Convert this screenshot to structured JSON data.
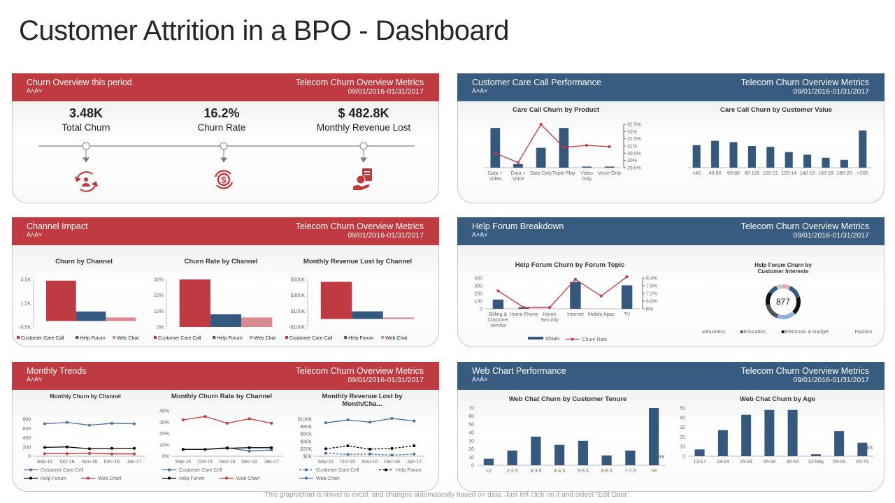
{
  "title": "Customer Attrition in a BPO - Dashboard",
  "footer": "This graph/chart is linked to excel, and changes automatically based on data. Just left click on it and select “Edit Data”.",
  "colors": {
    "red": "#bf3b41",
    "blue": "#385b80",
    "bar_blue": "#34587e",
    "pink": "#d98a8e"
  },
  "panels": [
    {
      "title": "Churn Overview  this period",
      "font_size_control": "A˄A˅",
      "metrics_title": "Telecom Churn Overview  Metrics",
      "date_range": "09/01/2016-01/31/2017"
    },
    {
      "title": "Customer Care  Call Performance",
      "font_size_control": "A˄A˅",
      "metrics_title": "Telecom Churn Overview  Metrics",
      "date_range": "09/01/2016-01/31/2017"
    },
    {
      "title": "Channel Impact",
      "font_size_control": "A˄A˅",
      "metrics_title": "Telecom Churn Overview  Metrics",
      "date_range": "09/01/2016-01/31/2017"
    },
    {
      "title": "Help Forum Breakdown",
      "font_size_control": "A˄A˅",
      "metrics_title": "Telecom Churn Overview  Metrics",
      "date_range": "09/01/2016-01/31/2017"
    },
    {
      "title": "Monthly Trends",
      "font_size_control": "A˄A˅",
      "metrics_title": "Telecom Churn Overview  Metrics",
      "date_range": "09/01/2016-01/31/2017"
    },
    {
      "title": "Web Chart Performance",
      "font_size_control": "A˄A˅",
      "metrics_title": "Telecom Churn Overview  Metrics",
      "date_range": "09/01/2016-01/31/2017"
    }
  ],
  "kpis": [
    {
      "value": "3.48K",
      "label": "Total Churn",
      "icon": "customer-churn-cycle-icon"
    },
    {
      "value": "16.2%",
      "label": "Churn Rate",
      "icon": "dollar-cycle-icon"
    },
    {
      "value": "$ 482.8K",
      "label": "Monthly Revenue Lost",
      "icon": "hand-money-document-icon"
    }
  ],
  "chart_data": [
    {
      "type": "bar+line",
      "title": "Care Call Churn by Product",
      "categories": [
        "Data +\nVideo",
        "Data +\nVoice",
        "Data Only",
        "Triple Play",
        "Video\nOnly",
        "Voice Only"
      ],
      "y_axis": {
        "min": 0,
        "max": 1200
      },
      "y2_axis": {
        "min": 29.5,
        "max": 32.5,
        "ticks": [
          29.5,
          30,
          30.5,
          31,
          31.5,
          32,
          32.5
        ],
        "labels": [
          "29.5%",
          "30%",
          "30.5%",
          "31%",
          "31.5%",
          "32%",
          "32.5%"
        ]
      },
      "series": [
        {
          "kind": "bar",
          "values": [
            1100,
            100,
            550,
            1100,
            30,
            30
          ],
          "color": "#34587e"
        },
        {
          "kind": "line",
          "axis": "right",
          "values": [
            30.5,
            29.85,
            32.5,
            30.9,
            31.05,
            30.95
          ],
          "color": "#c0393f"
        }
      ]
    },
    {
      "type": "bar",
      "title": "Care Call Churn by Customer Value",
      "categories": [
        "<40",
        "40-60",
        "60-80",
        "80-100",
        "100-12",
        "120-14",
        "140-16",
        "160-18",
        "180-20",
        ">200"
      ],
      "y_axis": {
        "min": 0,
        "max": 1000
      },
      "series": [
        {
          "kind": "bar",
          "values": [
            520,
            620,
            590,
            500,
            480,
            360,
            300,
            230,
            180,
            860
          ],
          "color": "#34587e"
        }
      ]
    },
    {
      "type": "bar",
      "title": "Churn by Channel",
      "categories": [
        ""
      ],
      "legend": "bottom",
      "y_axis": {
        "min": -0.5,
        "max": 3.5,
        "ticks": [
          -0.5,
          1.5,
          3.5
        ],
        "labels": [
          "-0.5K",
          "1.5K",
          "3.5K"
        ]
      },
      "series": [
        {
          "name": "Customer Care Call",
          "kind": "bar",
          "values": [
            3.4
          ],
          "color": "#bf3b41"
        },
        {
          "name": "Help Forum",
          "kind": "bar",
          "values": [
            0.8
          ],
          "color": "#34587e"
        },
        {
          "name": "Web Chat",
          "kind": "bar",
          "values": [
            0.3
          ],
          "color": "#d98a8e"
        }
      ]
    },
    {
      "type": "bar",
      "title": "Churn Rate by Channel",
      "categories": [
        ""
      ],
      "legend": "bottom",
      "y_axis": {
        "min": 0,
        "max": 30,
        "ticks": [
          0,
          10,
          20,
          30
        ],
        "labels": [
          "0%",
          "10%",
          "20%",
          "30%"
        ]
      },
      "series": [
        {
          "name": "Customer Care Call",
          "kind": "bar",
          "values": [
            30
          ],
          "color": "#bf3b41"
        },
        {
          "name": "Help Forum",
          "kind": "bar",
          "values": [
            8
          ],
          "color": "#34587e"
        },
        {
          "name": "Web Chat",
          "kind": "bar",
          "values": [
            6
          ],
          "color": "#d98a8e"
        }
      ]
    },
    {
      "type": "bar",
      "title": "Monthly Revenue Lost by Channel",
      "categories": [
        ""
      ],
      "legend": "bottom",
      "y_axis": {
        "min": -100,
        "max": 500,
        "ticks": [
          -100,
          100,
          300,
          500
        ],
        "labels": [
          "-$100K",
          "$100K",
          "$300K",
          "$500K"
        ]
      },
      "series": [
        {
          "name": "Customer Care Call",
          "kind": "bar",
          "values": [
            470
          ],
          "color": "#bf3b41"
        },
        {
          "name": "Help Forum",
          "kind": "bar",
          "values": [
            97
          ],
          "color": "#34587e"
        },
        {
          "name": "Web Chat",
          "kind": "bar",
          "values": [
            20
          ],
          "color": "#d98a8e"
        }
      ]
    },
    {
      "type": "bar+line",
      "title": "Help Forum Churn by Forum Topic",
      "categories": [
        "Billing &\nCustomer\nservice",
        "Home Phone",
        "Home\nSecurity",
        "Internet",
        "Mobile Apps",
        "TV"
      ],
      "legend": "bottom",
      "y_axis": {
        "min": 0,
        "max": 400,
        "ticks": [
          0,
          100,
          200,
          300,
          400
        ],
        "labels": [
          "0",
          "100",
          "200",
          "300",
          "400"
        ]
      },
      "y2_axis": {
        "min": 6,
        "max": 8.4,
        "ticks": [
          6,
          6.6,
          7.2,
          7.8,
          8.4
        ],
        "labels": [
          "6%",
          "6.6%",
          "7.2%",
          "7.8%",
          "8.4%"
        ]
      },
      "series": [
        {
          "name": "Churn",
          "kind": "bar",
          "values": [
            120,
            20,
            0,
            350,
            0,
            305
          ],
          "color": "#34587e"
        },
        {
          "name": "Churn Rate",
          "kind": "line",
          "axis": "right",
          "values": [
            7.4,
            6.1,
            6.1,
            8.3,
            7.0,
            8.5
          ],
          "color": "#c0393f"
        }
      ]
    },
    {
      "type": "donut",
      "title": "Help Forum Churn by\nCustomer Interests",
      "total": "877",
      "legend": "bottom",
      "segments": [
        {
          "name": "Business",
          "value": 60,
          "color": "#e6a9ad"
        },
        {
          "name": "Education",
          "value": 120,
          "color": "#34587e"
        },
        {
          "name": "Electronic & Gadget",
          "value": 150,
          "color": "#111111"
        },
        {
          "name": "Fashion",
          "value": 0,
          "color": "#ffffff"
        },
        {
          "name": "",
          "value": 160,
          "color": "#8fb0d8"
        },
        {
          "name": "",
          "value": 140,
          "color": "#555555"
        },
        {
          "name": "",
          "value": 110,
          "color": "#111111"
        },
        {
          "name": "",
          "value": 80,
          "color": "#34587e"
        },
        {
          "name": "",
          "value": 57,
          "color": "#c9c9c9"
        }
      ]
    },
    {
      "type": "line",
      "title": "Monthly Churn by Channel",
      "categories": [
        "Sep-16",
        "Oct-16",
        "Nov-16",
        "Dec-16",
        "Jan-17"
      ],
      "legend": "bottom",
      "y_axis": {
        "min": 0,
        "max": 800,
        "ticks": [
          0,
          200,
          400,
          600,
          800
        ],
        "labels": [
          "0",
          "200",
          "400",
          "600",
          "800"
        ]
      },
      "series": [
        {
          "name": "Customer Care Cell",
          "kind": "line",
          "values": [
            700,
            730,
            670,
            710,
            700
          ],
          "color": "#4a6f99"
        },
        {
          "name": "Help Forum",
          "kind": "line",
          "values": [
            190,
            200,
            160,
            170,
            170
          ],
          "color": "#000000"
        },
        {
          "name": "Web Chart",
          "kind": "line",
          "values": [
            55,
            55,
            60,
            50,
            50
          ],
          "color": "#c0393f"
        }
      ]
    },
    {
      "type": "line",
      "title": "Monthly Churn Rate by Channel",
      "categories": [
        "Sep-16",
        "Oct-16",
        "Nov-16",
        "Dec-16",
        "Jan-17"
      ],
      "legend": "bottom",
      "y_axis": {
        "min": 0,
        "max": 40,
        "ticks": [
          0,
          10,
          20,
          30,
          40
        ],
        "labels": [
          "0%",
          "10%",
          "20%",
          "30%",
          "40%"
        ]
      },
      "series": [
        {
          "name": "Customer Care Cell",
          "kind": "line",
          "values": [
            6,
            6,
            7.5,
            4.5,
            5.5
          ],
          "color": "#4a6f99"
        },
        {
          "name": "Help Forum",
          "kind": "line",
          "values": [
            6,
            6,
            7,
            7.5,
            7.5
          ],
          "color": "#000000"
        },
        {
          "name": "Web Chart",
          "kind": "line",
          "values": [
            32,
            35,
            29,
            33,
            29
          ],
          "color": "#c0393f"
        }
      ]
    },
    {
      "type": "line",
      "title": "Monthly Revenue Lost by\nMonth/Cha...",
      "categories": [
        "Sep-16",
        "Oct-16",
        "Nov-16",
        "Dec-16",
        "Jan-17"
      ],
      "legend": "bottom",
      "y_axis": {
        "min": 0,
        "max": 100,
        "ticks": [
          0,
          20,
          40,
          60,
          80,
          100
        ],
        "labels": [
          "$0K",
          "$20K",
          "$40K",
          "$60K",
          "$80K",
          "$100K"
        ]
      },
      "series": [
        {
          "name": "Customer Care Cell",
          "kind": "line",
          "dashed": true,
          "values": [
            8,
            5,
            6,
            3,
            6
          ],
          "color": "#4a6f99"
        },
        {
          "name": "Help Forum",
          "kind": "line",
          "dashed": true,
          "values": [
            20,
            28,
            19,
            21,
            28
          ],
          "color": "#000000"
        },
        {
          "name": "Web Chart",
          "kind": "line",
          "values": [
            90,
            98,
            92,
            102,
            95
          ],
          "color": "#4a6f99"
        }
      ]
    },
    {
      "type": "bar",
      "title": "Web Chat Churn by Customer Tenure",
      "categories": [
        "<2",
        "2-2.5",
        "3-3.5",
        "4-4.5",
        "5-5.5",
        "6-6.5",
        "7-7.5",
        ">8"
      ],
      "axis_note": "Years",
      "y_axis": {
        "min": 0,
        "max": 70,
        "ticks": [
          0,
          10,
          20,
          30,
          40,
          50,
          60,
          70
        ],
        "labels": [
          "0",
          "10",
          "20",
          "30",
          "40",
          "50",
          "60",
          "70"
        ]
      },
      "series": [
        {
          "kind": "bar",
          "values": [
            8,
            18,
            35,
            25,
            30,
            12,
            18,
            70
          ],
          "color": "#34587e"
        }
      ]
    },
    {
      "type": "bar",
      "title": "Web Chat Churn by Age",
      "categories": [
        "13-17",
        "18-24",
        "25-34",
        "35-44",
        "45-54",
        "12-May",
        "55-64",
        "65-75"
      ],
      "axis_note": "Years",
      "y_axis": {
        "min": 0,
        "max": 50,
        "ticks": [
          0,
          10,
          20,
          30,
          40,
          50
        ],
        "labels": [
          "0",
          "10",
          "20",
          "30",
          "40",
          "50"
        ]
      },
      "series": [
        {
          "kind": "bar",
          "values": [
            7,
            27,
            43,
            48,
            48,
            2,
            26,
            14
          ],
          "color": "#34587e"
        }
      ]
    }
  ]
}
